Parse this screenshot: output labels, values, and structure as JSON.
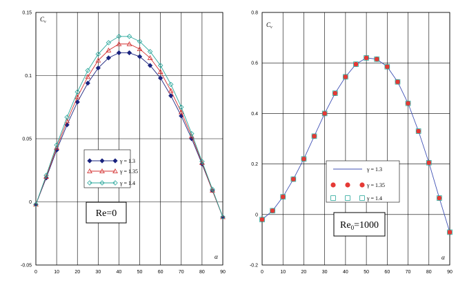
{
  "chart_data": [
    {
      "type": "line",
      "ylabel": "C_v",
      "ylabel_main": "C",
      "ylabel_sub": "v",
      "xlabel": "α",
      "xlim": [
        0,
        90
      ],
      "ylim": [
        -0.05,
        0.15
      ],
      "xticks": [
        0,
        10,
        20,
        30,
        40,
        50,
        60,
        70,
        80,
        90
      ],
      "yticks": [
        -0.05,
        0,
        0.05,
        0.1,
        0.15
      ],
      "ytick_labels": [
        "-0.05",
        "0",
        "0.05",
        "0.1",
        "0.15"
      ],
      "grid": true,
      "legend_position": "lower-center",
      "annotation": {
        "main": "Re=0",
        "sub": ""
      },
      "x": [
        0,
        5,
        10,
        15,
        20,
        25,
        30,
        35,
        40,
        45,
        50,
        55,
        60,
        65,
        70,
        75,
        80,
        85,
        90
      ],
      "series": [
        {
          "name": "γ = 1.3",
          "color": "#1a237e",
          "marker": "diamond",
          "values": [
            -0.002,
            0.019,
            0.041,
            0.061,
            0.079,
            0.094,
            0.106,
            0.114,
            0.118,
            0.118,
            0.115,
            0.108,
            0.098,
            0.084,
            0.068,
            0.05,
            0.03,
            0.009,
            -0.012
          ]
        },
        {
          "name": "γ = 1.35",
          "color": "#d32f2f",
          "marker": "triangle",
          "values": [
            -0.002,
            0.02,
            0.043,
            0.064,
            0.083,
            0.099,
            0.112,
            0.12,
            0.125,
            0.125,
            0.121,
            0.114,
            0.103,
            0.088,
            0.071,
            0.052,
            0.031,
            0.009,
            -0.012
          ]
        },
        {
          "name": "γ = 1.4",
          "color": "#26a69a",
          "marker": "circle-diamond",
          "values": [
            -0.002,
            0.021,
            0.045,
            0.067,
            0.087,
            0.104,
            0.117,
            0.126,
            0.131,
            0.131,
            0.127,
            0.119,
            0.108,
            0.093,
            0.075,
            0.054,
            0.032,
            0.01,
            -0.012
          ]
        }
      ]
    },
    {
      "type": "line",
      "ylabel": "C_v",
      "ylabel_main": "C",
      "ylabel_sub": "v",
      "xlabel": "α",
      "xlim": [
        0,
        90
      ],
      "ylim": [
        -0.2,
        0.8
      ],
      "xticks": [
        0,
        10,
        20,
        30,
        40,
        50,
        60,
        70,
        80,
        90
      ],
      "yticks": [
        -0.2,
        0,
        0.2,
        0.4,
        0.6,
        0.8
      ],
      "ytick_labels": [
        "-0.2",
        "0",
        "0.2",
        "0.4",
        "0.6",
        "0.8"
      ],
      "grid": true,
      "legend_position": "lower-center",
      "annotation": {
        "main": "Re",
        "sub": "0",
        "suffix": "=1000"
      },
      "x": [
        0,
        5,
        10,
        15,
        20,
        25,
        30,
        35,
        40,
        45,
        50,
        55,
        60,
        65,
        70,
        75,
        80,
        85,
        90
      ],
      "series": [
        {
          "name": "γ = 1.3",
          "color": "#3f51b5",
          "marker": "none",
          "values": [
            -0.02,
            0.015,
            0.07,
            0.14,
            0.22,
            0.31,
            0.4,
            0.48,
            0.545,
            0.595,
            0.62,
            0.615,
            0.585,
            0.525,
            0.44,
            0.33,
            0.205,
            0.065,
            -0.07
          ]
        },
        {
          "name": "γ = 1.35",
          "color": "#e53935",
          "marker": "dot",
          "values": [
            -0.02,
            0.015,
            0.07,
            0.14,
            0.22,
            0.31,
            0.4,
            0.48,
            0.545,
            0.595,
            0.62,
            0.615,
            0.585,
            0.525,
            0.44,
            0.33,
            0.205,
            0.065,
            -0.07
          ]
        },
        {
          "name": "γ = 1.4",
          "color": "#26a69a",
          "marker": "square",
          "values": [
            -0.02,
            0.015,
            0.07,
            0.14,
            0.22,
            0.31,
            0.4,
            0.48,
            0.545,
            0.595,
            0.62,
            0.615,
            0.585,
            0.525,
            0.44,
            0.33,
            0.205,
            0.065,
            -0.07
          ]
        }
      ]
    }
  ]
}
